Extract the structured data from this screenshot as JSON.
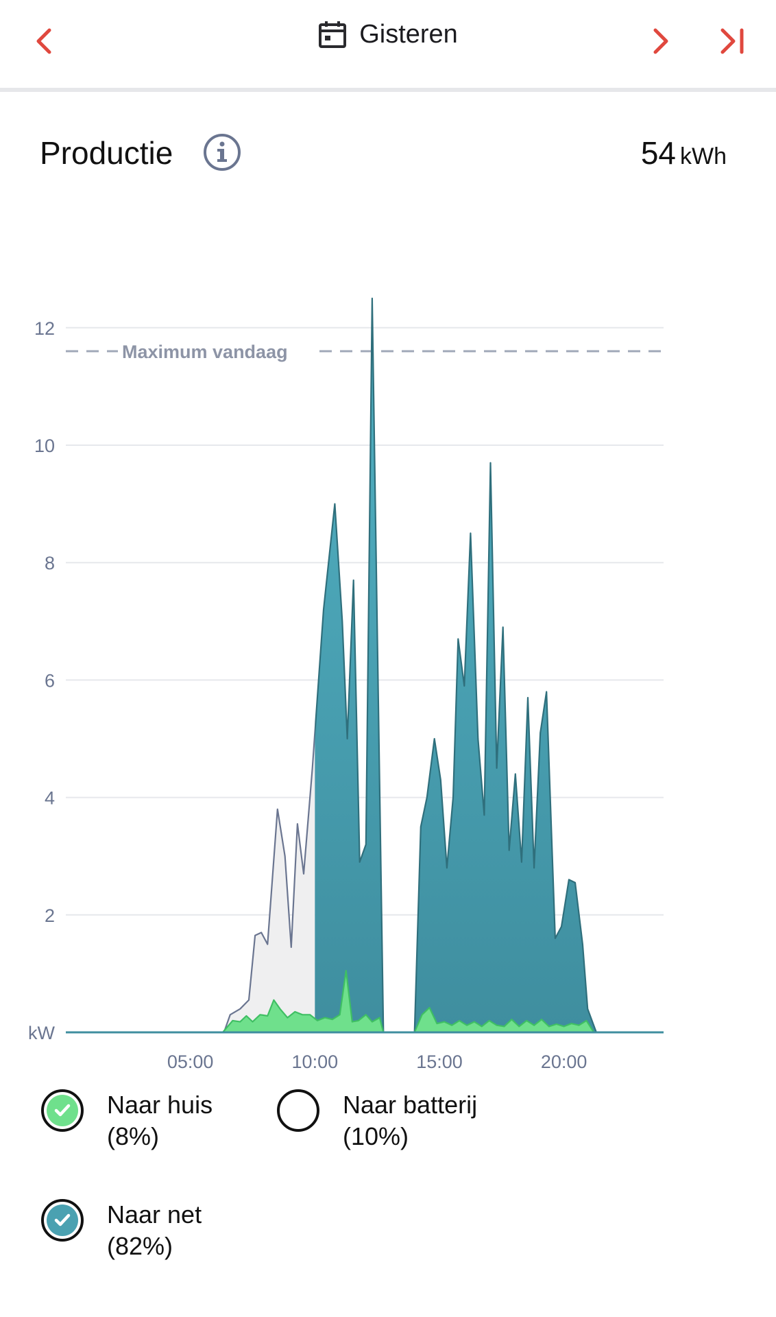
{
  "header": {
    "date_label": "Gisteren",
    "accent_color": "#e0483e"
  },
  "section": {
    "title": "Productie",
    "total_value": "54",
    "total_unit": "kWh"
  },
  "chart_data": {
    "type": "area",
    "y_unit_label": "kW",
    "ylim": [
      0,
      12.5
    ],
    "xlim_hours": [
      0,
      24
    ],
    "y_ticks": [
      "2",
      "4",
      "6",
      "8",
      "10",
      "12"
    ],
    "x_ticks": [
      "05:00",
      "10:00",
      "15:00",
      "20:00"
    ],
    "reference_line": {
      "label": "Maximum vandaag",
      "value": 11.6
    },
    "grid": true,
    "series": [
      {
        "name": "Naar net",
        "color": "#4aa1b1",
        "visible": true,
        "points": [
          [
            0,
            0
          ],
          [
            6.35,
            0
          ],
          [
            6.6,
            0.3
          ],
          [
            7.0,
            0.4
          ],
          [
            7.35,
            0.55
          ],
          [
            7.6,
            1.65
          ],
          [
            7.85,
            1.7
          ],
          [
            8.1,
            1.5
          ],
          [
            8.5,
            3.8
          ],
          [
            8.8,
            3.0
          ],
          [
            9.05,
            1.45
          ],
          [
            9.3,
            3.55
          ],
          [
            9.55,
            2.7
          ],
          [
            9.9,
            4.5
          ],
          [
            10.35,
            7.2
          ],
          [
            10.8,
            9.0
          ],
          [
            11.1,
            7.0
          ],
          [
            11.3,
            5.0
          ],
          [
            11.55,
            7.7
          ],
          [
            11.8,
            2.9
          ],
          [
            12.05,
            3.2
          ],
          [
            12.3,
            12.5
          ],
          [
            12.75,
            0
          ],
          [
            14.0,
            0
          ],
          [
            14.25,
            3.5
          ],
          [
            14.5,
            4.0
          ],
          [
            14.8,
            5.0
          ],
          [
            15.05,
            4.3
          ],
          [
            15.3,
            2.8
          ],
          [
            15.55,
            4.0
          ],
          [
            15.75,
            6.7
          ],
          [
            16.0,
            5.9
          ],
          [
            16.25,
            8.5
          ],
          [
            16.55,
            5.0
          ],
          [
            16.8,
            3.7
          ],
          [
            17.05,
            9.7
          ],
          [
            17.3,
            4.5
          ],
          [
            17.55,
            6.9
          ],
          [
            17.8,
            3.1
          ],
          [
            18.05,
            4.4
          ],
          [
            18.3,
            2.9
          ],
          [
            18.55,
            5.7
          ],
          [
            18.8,
            2.8
          ],
          [
            19.05,
            5.1
          ],
          [
            19.3,
            5.8
          ],
          [
            19.65,
            1.6
          ],
          [
            19.9,
            1.8
          ],
          [
            20.2,
            2.6
          ],
          [
            20.45,
            2.55
          ],
          [
            20.75,
            1.5
          ],
          [
            20.95,
            0.4
          ],
          [
            21.3,
            0
          ],
          [
            24,
            0
          ]
        ]
      },
      {
        "name": "Naar huis",
        "color": "#6fe08c",
        "visible": true,
        "points": [
          [
            0,
            0
          ],
          [
            6.3,
            0
          ],
          [
            6.7,
            0.2
          ],
          [
            7.0,
            0.18
          ],
          [
            7.25,
            0.28
          ],
          [
            7.5,
            0.18
          ],
          [
            7.8,
            0.3
          ],
          [
            8.1,
            0.28
          ],
          [
            8.35,
            0.55
          ],
          [
            8.6,
            0.4
          ],
          [
            8.9,
            0.25
          ],
          [
            9.2,
            0.35
          ],
          [
            9.5,
            0.3
          ],
          [
            9.8,
            0.3
          ],
          [
            10.1,
            0.2
          ],
          [
            10.4,
            0.25
          ],
          [
            10.7,
            0.22
          ],
          [
            11.0,
            0.3
          ],
          [
            11.25,
            1.05
          ],
          [
            11.5,
            0.18
          ],
          [
            11.75,
            0.2
          ],
          [
            12.05,
            0.3
          ],
          [
            12.3,
            0.18
          ],
          [
            12.6,
            0.25
          ],
          [
            12.75,
            0
          ],
          [
            14.0,
            0
          ],
          [
            14.3,
            0.3
          ],
          [
            14.6,
            0.42
          ],
          [
            14.9,
            0.15
          ],
          [
            15.2,
            0.18
          ],
          [
            15.5,
            0.12
          ],
          [
            15.8,
            0.2
          ],
          [
            16.1,
            0.12
          ],
          [
            16.4,
            0.18
          ],
          [
            16.7,
            0.1
          ],
          [
            17.0,
            0.2
          ],
          [
            17.3,
            0.12
          ],
          [
            17.6,
            0.1
          ],
          [
            17.9,
            0.22
          ],
          [
            18.2,
            0.1
          ],
          [
            18.5,
            0.2
          ],
          [
            18.8,
            0.12
          ],
          [
            19.1,
            0.22
          ],
          [
            19.4,
            0.1
          ],
          [
            19.7,
            0.14
          ],
          [
            20.0,
            0.1
          ],
          [
            20.3,
            0.15
          ],
          [
            20.6,
            0.12
          ],
          [
            20.9,
            0.2
          ],
          [
            21.2,
            0
          ],
          [
            24,
            0
          ]
        ]
      },
      {
        "name": "Naar batterij",
        "color": "#f0f1f2",
        "visible": false,
        "points": [
          [
            6.3,
            0
          ],
          [
            10.0,
            0
          ]
        ]
      }
    ]
  },
  "legend": [
    {
      "name": "Naar huis",
      "percent": "(8%)",
      "checked": true,
      "color": "#6fe08c"
    },
    {
      "name": "Naar batterij",
      "percent": "(10%)",
      "checked": false,
      "color": "#ffffff"
    },
    {
      "name": "Naar net",
      "percent": "(82%)",
      "checked": true,
      "color": "#4aa1b1"
    }
  ]
}
